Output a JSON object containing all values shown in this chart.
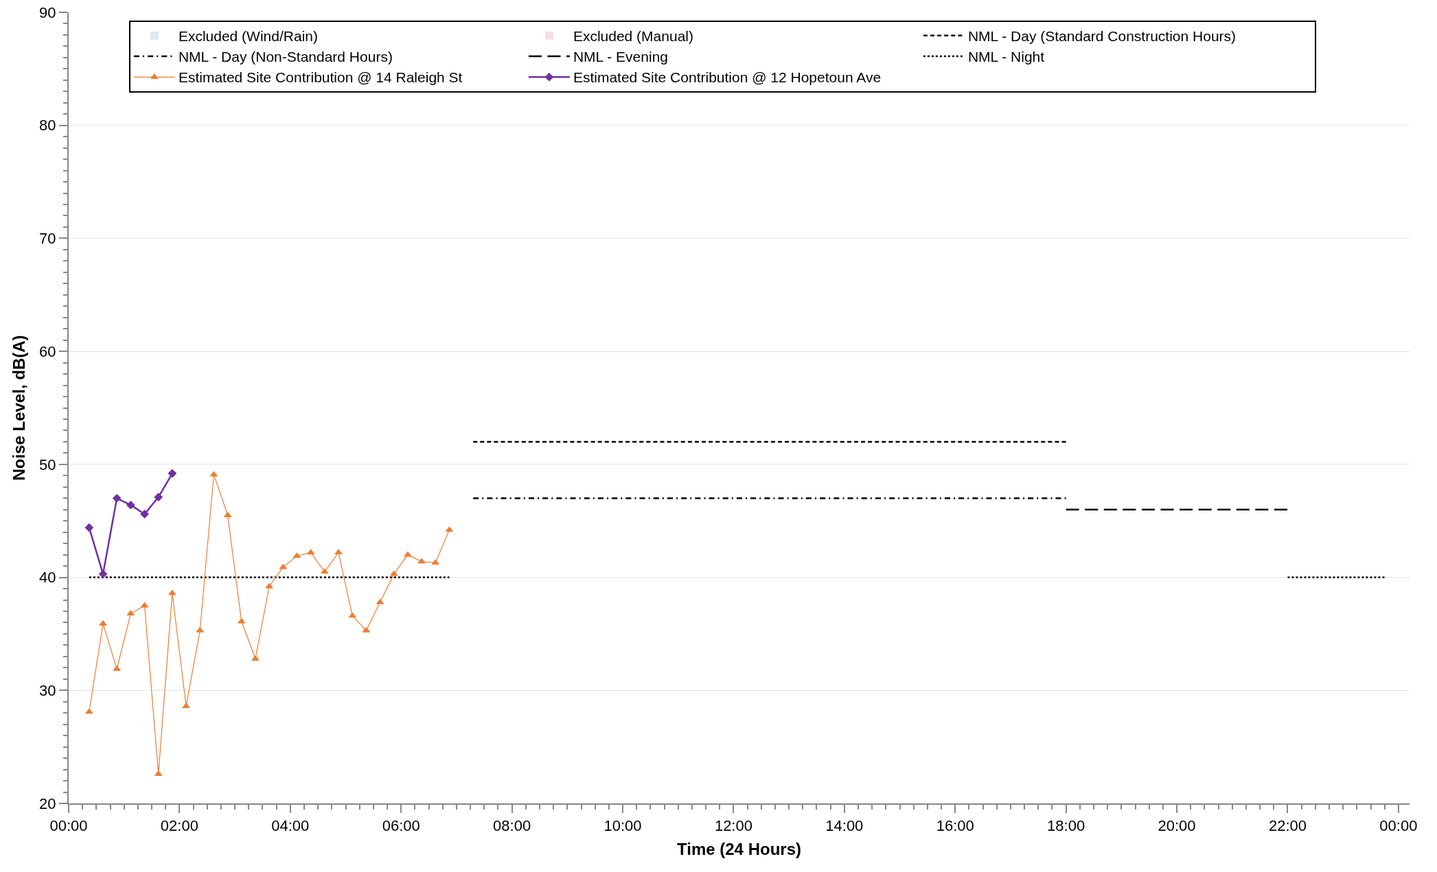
{
  "chart_data": {
    "type": "line",
    "xlabel": "Time (24 Hours)",
    "ylabel": "Noise Level, dB(A)",
    "xlim": [
      0,
      24.2
    ],
    "ylim": [
      20,
      90
    ],
    "xticks": [
      {
        "value": 0,
        "label": "00:00"
      },
      {
        "value": 2,
        "label": "02:00"
      },
      {
        "value": 4,
        "label": "04:00"
      },
      {
        "value": 6,
        "label": "06:00"
      },
      {
        "value": 8,
        "label": "08:00"
      },
      {
        "value": 10,
        "label": "10:00"
      },
      {
        "value": 12,
        "label": "12:00"
      },
      {
        "value": 14,
        "label": "14:00"
      },
      {
        "value": 16,
        "label": "16:00"
      },
      {
        "value": 18,
        "label": "18:00"
      },
      {
        "value": 20,
        "label": "20:00"
      },
      {
        "value": 22,
        "label": "22:00"
      },
      {
        "value": 24,
        "label": "00:00"
      }
    ],
    "yticks": [
      20,
      30,
      40,
      50,
      60,
      70,
      80,
      90
    ],
    "grid": "y",
    "legend": "top",
    "series": [
      {
        "name": "Excluded (Wind/Rain)",
        "type": "bar",
        "color": "#dbe7f4"
      },
      {
        "name": "Excluded (Manual)",
        "type": "bar",
        "color": "#f7dede"
      },
      {
        "name": "NML - Day (Standard Construction Hours)",
        "color": "#000000",
        "line_style": "dashed",
        "marker": "none",
        "x": [
          7.3,
          18.0
        ],
        "values": [
          52,
          52
        ]
      },
      {
        "name": "NML - Day (Non-Standard Hours)",
        "color": "#000000",
        "line_style": "dashdot",
        "marker": "none",
        "x": [
          7.3,
          18.0
        ],
        "values": [
          47,
          47
        ]
      },
      {
        "name": "NML - Evening",
        "color": "#000000",
        "line_style": "longdash",
        "marker": "none",
        "x": [
          18.0,
          22.0
        ],
        "values": [
          46,
          46
        ]
      },
      {
        "name": "NML - Night",
        "color": "#000000",
        "line_style": "dotted",
        "marker": "none",
        "x": [
          0.37,
          6.87,
          14,
          22.0,
          23.75
        ],
        "values": [
          40,
          40,
          null,
          40,
          40
        ]
      },
      {
        "name": "Estimated Site Contribution @ 14 Raleigh St",
        "color": "#ed7d31",
        "line_style": "solid",
        "marker": "triangle",
        "x": [
          0.37,
          0.62,
          0.87,
          1.12,
          1.37,
          1.62,
          1.87,
          2.12,
          2.37,
          2.62,
          2.87,
          3.12,
          3.37,
          3.62,
          3.87,
          4.12,
          4.37,
          4.62,
          4.87,
          5.12,
          5.37,
          5.62,
          5.87,
          6.12,
          6.37,
          6.62,
          6.87
        ],
        "values": [
          28.1,
          35.9,
          31.9,
          36.8,
          37.5,
          22.6,
          38.6,
          28.6,
          35.3,
          49.1,
          45.5,
          36.1,
          32.8,
          39.2,
          40.9,
          41.9,
          42.2,
          40.5,
          42.2,
          36.6,
          35.3,
          37.8,
          40.3,
          42.0,
          41.4,
          41.3,
          44.2
        ]
      },
      {
        "name": "Estimated Site Contribution @ 12 Hopetoun Ave",
        "color": "#7030a0",
        "line_style": "solid",
        "marker": "diamond",
        "x": [
          0.37,
          0.62,
          0.87,
          1.12,
          1.37,
          1.62,
          1.87
        ],
        "values": [
          44.4,
          40.3,
          47.0,
          46.4,
          45.6,
          47.1,
          49.2
        ]
      }
    ]
  }
}
